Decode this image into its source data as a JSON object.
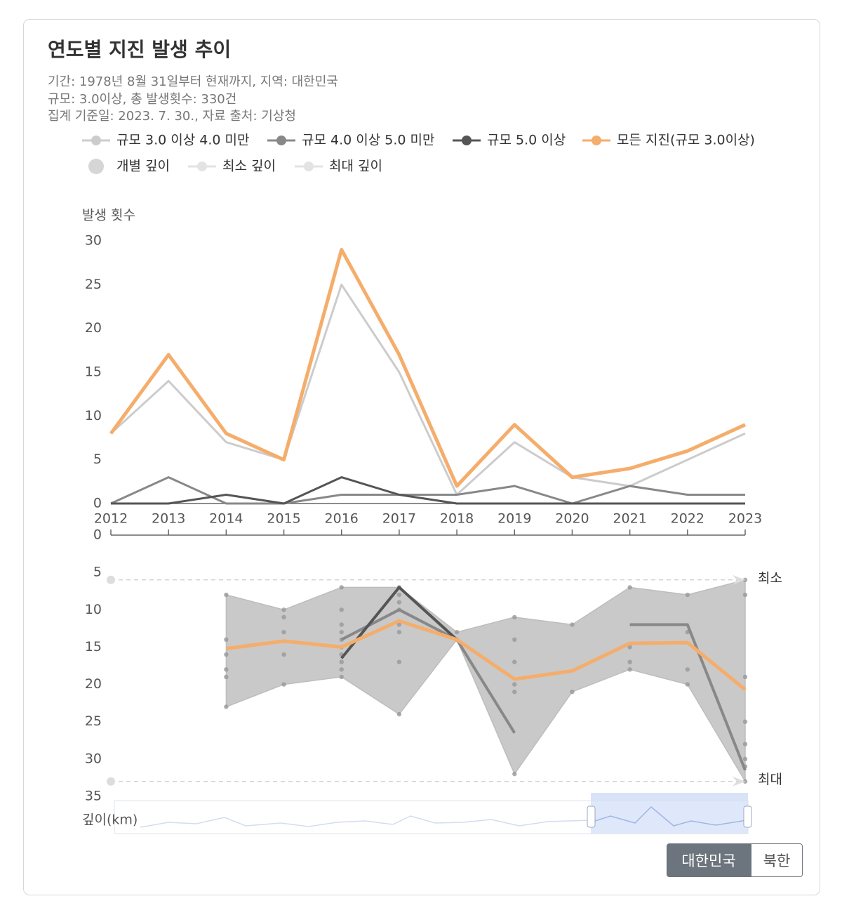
{
  "title": "연도별 지진 발생 추이",
  "subtitle": [
    "기간: 1978년 8월 31일부터 현재까지, 지역: 대한민국",
    "규모: 3.0이상, 총 발생횟수: 330건",
    "집계 기준일: 2023. 7. 30., 자료 출처: 기상청"
  ],
  "chart_data": [
    {
      "type": "line",
      "ylabel": "발생 횟수",
      "categories": [
        "2012",
        "2013",
        "2014",
        "2015",
        "2016",
        "2017",
        "2018",
        "2019",
        "2020",
        "2021",
        "2022",
        "2023"
      ],
      "ylim": [
        0,
        30
      ],
      "yticks": [
        0,
        5,
        10,
        15,
        20,
        25,
        30
      ],
      "grid": false,
      "series": [
        {
          "name": "규모 3.0 이상 4.0 미만",
          "color": "#cccccc",
          "values": [
            8,
            14,
            7,
            5,
            25,
            15,
            1,
            7,
            3,
            2,
            5,
            8
          ]
        },
        {
          "name": "규모 4.0 이상 5.0 미만",
          "color": "#888888",
          "values": [
            0,
            3,
            0,
            0,
            1,
            1,
            1,
            2,
            0,
            2,
            1,
            1
          ]
        },
        {
          "name": "규모 5.0 이상",
          "color": "#555555",
          "values": [
            0,
            0,
            1,
            0,
            3,
            1,
            0,
            0,
            0,
            0,
            0,
            0
          ]
        },
        {
          "name": "모든 지진(규모 3.0이상)",
          "color": "#f5ad6b",
          "values": [
            8,
            17,
            8,
            5,
            29,
            17,
            2,
            9,
            3,
            4,
            6,
            9
          ]
        }
      ]
    },
    {
      "type": "line",
      "ylabel": "깊이(km)",
      "x": [
        2012,
        2013,
        2014,
        2015,
        2016,
        2017,
        2018,
        2019,
        2020,
        2021,
        2022,
        2023
      ],
      "xlim": [
        2012,
        2023
      ],
      "xticks": [
        2012,
        2013,
        2014,
        2015,
        2016,
        2017,
        2018,
        2019,
        2020,
        2021,
        2022,
        2023
      ],
      "ylim": [
        0,
        35
      ],
      "yticks": [
        0,
        5,
        10,
        15,
        20,
        25,
        30,
        35
      ],
      "y_inverted": true,
      "series": [
        {
          "name": "개별 깊이",
          "type": "scatter",
          "color": "#999999",
          "x": [
            2014,
            2014,
            2014,
            2014,
            2014,
            2014,
            2015,
            2015,
            2015,
            2015,
            2015,
            2016,
            2016,
            2016,
            2016,
            2016,
            2016,
            2016,
            2016,
            2016,
            2016,
            2017,
            2017,
            2017,
            2017,
            2017,
            2017,
            2017,
            2017,
            2018,
            2018,
            2019,
            2019,
            2019,
            2019,
            2019,
            2019,
            2020,
            2020,
            2021,
            2021,
            2021,
            2021,
            2022,
            2022,
            2022,
            2022,
            2023,
            2023,
            2023,
            2023,
            2023,
            2023,
            2023,
            2023
          ],
          "values": [
            8,
            14,
            16,
            18,
            19,
            23,
            10,
            11,
            13,
            16,
            20,
            7,
            10,
            12,
            13,
            14,
            15,
            16,
            17,
            18,
            19,
            7,
            8,
            9,
            10,
            12,
            13,
            17,
            24,
            13,
            14,
            11,
            14,
            17,
            20,
            21,
            32,
            12,
            21,
            7,
            15,
            17,
            18,
            8,
            13,
            18,
            20,
            6,
            8,
            19,
            25,
            28,
            30,
            31,
            33
          ]
        },
        {
          "name": "최소 깊이",
          "type": "area-low",
          "color": "#e0e0e0",
          "values": [
            null,
            null,
            8,
            10,
            7,
            7,
            13,
            11,
            12,
            7,
            8,
            6
          ]
        },
        {
          "name": "최대 깊이",
          "type": "area-high",
          "color": "#e0e0e0",
          "values": [
            null,
            null,
            23,
            20,
            19,
            24,
            14,
            32,
            21,
            18,
            20,
            33
          ]
        },
        {
          "type": "line",
          "color": "#888888",
          "values": [
            null,
            null,
            null,
            null,
            14,
            10,
            14,
            26.5,
            null,
            12,
            12,
            31.5
          ]
        },
        {
          "type": "line",
          "color": "#555555",
          "values": [
            null,
            null,
            null,
            null,
            16.5,
            7,
            14,
            null,
            null,
            null,
            null,
            null
          ]
        },
        {
          "type": "line",
          "color": "#f5ad6b",
          "values": [
            null,
            null,
            15.2,
            14.2,
            15,
            11.5,
            14,
            19.3,
            18.2,
            14.5,
            14.4,
            20.7
          ]
        }
      ],
      "marklines": [
        {
          "value": 6,
          "label": "최소"
        },
        {
          "value": 33,
          "label": "최대"
        }
      ]
    }
  ],
  "buttons": [
    "대한민국",
    "북한"
  ]
}
